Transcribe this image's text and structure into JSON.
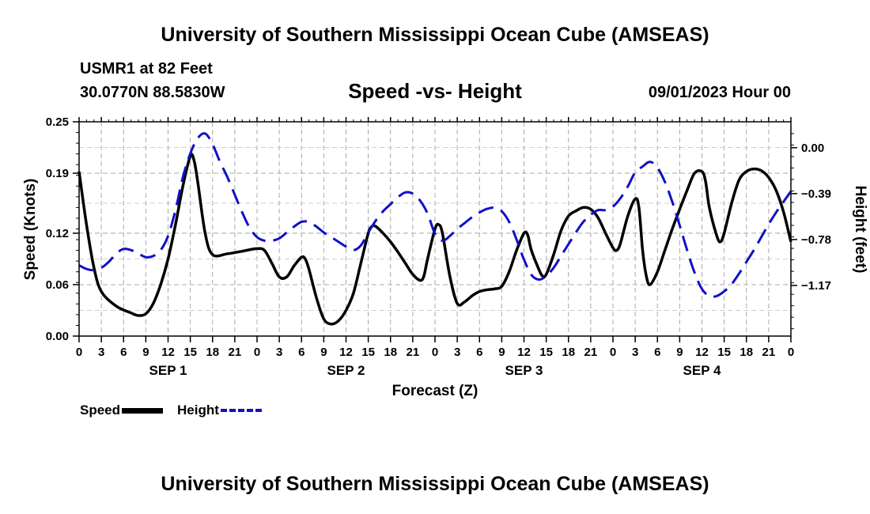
{
  "header": {
    "title": "University of Southern Mississippi Ocean Cube (AMSEAS)",
    "station": "USMR1 at 82 Feet",
    "coords": "30.0770N  88.5830W",
    "subtitle": "Speed -vs- Height",
    "datetime": "09/01/2023 Hour 00"
  },
  "footer": {
    "title": "University of Southern Mississippi Ocean Cube (AMSEAS)"
  },
  "legend": [
    {
      "label": "Speed",
      "color": "#000000",
      "style": "solid"
    },
    {
      "label": "Height",
      "color": "#1010c8",
      "style": "dashed"
    }
  ],
  "chart_data": {
    "type": "line",
    "title": "Speed -vs- Height",
    "xlabel": "Forecast (Z)",
    "ylabel": "Speed (Knots)",
    "y2label": "Height (feet)",
    "xlim": [
      0,
      96
    ],
    "ylim": [
      0,
      0.25
    ],
    "y2lim": [
      -1.6,
      0.22
    ],
    "y_ticks": [
      0.0,
      0.06,
      0.12,
      0.19,
      0.25
    ],
    "y_tick_labels": [
      "0.00",
      "0.06",
      "0.12",
      "0.19",
      "0.25"
    ],
    "y2_ticks": [
      0.0,
      -0.39,
      -0.78,
      -1.17
    ],
    "y2_tick_labels": [
      "0.00",
      "−0.39",
      "−0.78",
      "−1.17"
    ],
    "x_ticks": [
      0,
      3,
      6,
      9,
      12,
      15,
      18,
      21,
      24,
      27,
      30,
      33,
      36,
      39,
      42,
      45,
      48,
      51,
      54,
      57,
      60,
      63,
      66,
      69,
      72,
      75,
      78,
      81,
      84,
      87,
      90,
      93,
      96
    ],
    "x_tick_labels": [
      "0",
      "3",
      "6",
      "9",
      "12",
      "15",
      "18",
      "21",
      "0",
      "3",
      "6",
      "9",
      "12",
      "15",
      "18",
      "21",
      "0",
      "3",
      "6",
      "9",
      "12",
      "15",
      "18",
      "21",
      "0",
      "3",
      "6",
      "9",
      "12",
      "15",
      "18",
      "21",
      "0"
    ],
    "day_labels": [
      {
        "x": 12,
        "label": "SEP 1"
      },
      {
        "x": 36,
        "label": "SEP 2"
      },
      {
        "x": 60,
        "label": "SEP 3"
      },
      {
        "x": 84,
        "label": "SEP 4"
      }
    ],
    "grid": true,
    "series": [
      {
        "name": "Speed",
        "axis": "left",
        "color": "#000000",
        "style": "solid",
        "points": [
          [
            0,
            0.192
          ],
          [
            1,
            0.13
          ],
          [
            2,
            0.08
          ],
          [
            3,
            0.052
          ],
          [
            5,
            0.035
          ],
          [
            7,
            0.027
          ],
          [
            8,
            0.024
          ],
          [
            9,
            0.026
          ],
          [
            10,
            0.038
          ],
          [
            11,
            0.06
          ],
          [
            12,
            0.09
          ],
          [
            13,
            0.13
          ],
          [
            14,
            0.175
          ],
          [
            15,
            0.21
          ],
          [
            15.5,
            0.205
          ],
          [
            16,
            0.18
          ],
          [
            17,
            0.12
          ],
          [
            18,
            0.095
          ],
          [
            20,
            0.096
          ],
          [
            22,
            0.099
          ],
          [
            24,
            0.102
          ],
          [
            25,
            0.1
          ],
          [
            26,
            0.085
          ],
          [
            27,
            0.069
          ],
          [
            28,
            0.069
          ],
          [
            29,
            0.082
          ],
          [
            30,
            0.092
          ],
          [
            30.5,
            0.09
          ],
          [
            31,
            0.078
          ],
          [
            32,
            0.045
          ],
          [
            33,
            0.02
          ],
          [
            34,
            0.014
          ],
          [
            35,
            0.018
          ],
          [
            36,
            0.03
          ],
          [
            37,
            0.05
          ],
          [
            38,
            0.085
          ],
          [
            39,
            0.12
          ],
          [
            39.5,
            0.128
          ],
          [
            40,
            0.128
          ],
          [
            41,
            0.12
          ],
          [
            42,
            0.11
          ],
          [
            43,
            0.098
          ],
          [
            44,
            0.085
          ],
          [
            45,
            0.072
          ],
          [
            46,
            0.065
          ],
          [
            46.5,
            0.07
          ],
          [
            47,
            0.09
          ],
          [
            48,
            0.125
          ],
          [
            48.5,
            0.13
          ],
          [
            49,
            0.12
          ],
          [
            50,
            0.07
          ],
          [
            51,
            0.038
          ],
          [
            52,
            0.04
          ],
          [
            53,
            0.047
          ],
          [
            54,
            0.052
          ],
          [
            55,
            0.054
          ],
          [
            56,
            0.055
          ],
          [
            57,
            0.058
          ],
          [
            58,
            0.075
          ],
          [
            59,
            0.1
          ],
          [
            60,
            0.12
          ],
          [
            60.5,
            0.118
          ],
          [
            61,
            0.1
          ],
          [
            62,
            0.078
          ],
          [
            62.5,
            0.07
          ],
          [
            63,
            0.072
          ],
          [
            64,
            0.095
          ],
          [
            65,
            0.123
          ],
          [
            66,
            0.14
          ],
          [
            67,
            0.146
          ],
          [
            68,
            0.15
          ],
          [
            69,
            0.148
          ],
          [
            70,
            0.138
          ],
          [
            71,
            0.12
          ],
          [
            72,
            0.103
          ],
          [
            72.5,
            0.1
          ],
          [
            73,
            0.108
          ],
          [
            74,
            0.14
          ],
          [
            75,
            0.16
          ],
          [
            75.5,
            0.15
          ],
          [
            76,
            0.1
          ],
          [
            76.5,
            0.07
          ],
          [
            77,
            0.06
          ],
          [
            78,
            0.075
          ],
          [
            79,
            0.1
          ],
          [
            80,
            0.125
          ],
          [
            81,
            0.148
          ],
          [
            82,
            0.17
          ],
          [
            83,
            0.19
          ],
          [
            84,
            0.192
          ],
          [
            84.5,
            0.18
          ],
          [
            85,
            0.15
          ],
          [
            86,
            0.117
          ],
          [
            86.5,
            0.11
          ],
          [
            87,
            0.12
          ],
          [
            88,
            0.155
          ],
          [
            89,
            0.182
          ],
          [
            90,
            0.192
          ],
          [
            91,
            0.195
          ],
          [
            92,
            0.193
          ],
          [
            93,
            0.185
          ],
          [
            94,
            0.17
          ],
          [
            95,
            0.145
          ],
          [
            96,
            0.11
          ]
        ]
      },
      {
        "name": "Height",
        "axis": "right",
        "color": "#1010c8",
        "style": "dashed",
        "points": [
          [
            0,
            -1.0
          ],
          [
            1,
            -1.03
          ],
          [
            2,
            -1.04
          ],
          [
            3,
            -1.02
          ],
          [
            4,
            -0.97
          ],
          [
            5,
            -0.9
          ],
          [
            6,
            -0.86
          ],
          [
            7,
            -0.87
          ],
          [
            8,
            -0.9
          ],
          [
            9,
            -0.93
          ],
          [
            10,
            -0.92
          ],
          [
            11,
            -0.87
          ],
          [
            12,
            -0.75
          ],
          [
            13,
            -0.53
          ],
          [
            14,
            -0.25
          ],
          [
            15,
            -0.05
          ],
          [
            16,
            0.08
          ],
          [
            17,
            0.12
          ],
          [
            18,
            0.03
          ],
          [
            19,
            -0.12
          ],
          [
            20,
            -0.25
          ],
          [
            21,
            -0.4
          ],
          [
            22,
            -0.55
          ],
          [
            23,
            -0.68
          ],
          [
            24,
            -0.76
          ],
          [
            25,
            -0.79
          ],
          [
            26,
            -0.79
          ],
          [
            27,
            -0.77
          ],
          [
            28,
            -0.72
          ],
          [
            29,
            -0.67
          ],
          [
            30,
            -0.63
          ],
          [
            31,
            -0.63
          ],
          [
            32,
            -0.67
          ],
          [
            33,
            -0.72
          ],
          [
            34,
            -0.76
          ],
          [
            35,
            -0.8
          ],
          [
            36,
            -0.84
          ],
          [
            37,
            -0.87
          ],
          [
            38,
            -0.83
          ],
          [
            39,
            -0.72
          ],
          [
            40,
            -0.62
          ],
          [
            41,
            -0.54
          ],
          [
            42,
            -0.48
          ],
          [
            43,
            -0.42
          ],
          [
            44,
            -0.38
          ],
          [
            45,
            -0.39
          ],
          [
            46,
            -0.45
          ],
          [
            47,
            -0.56
          ],
          [
            48,
            -0.73
          ],
          [
            49,
            -0.79
          ],
          [
            50,
            -0.75
          ],
          [
            51,
            -0.69
          ],
          [
            52,
            -0.64
          ],
          [
            53,
            -0.59
          ],
          [
            54,
            -0.55
          ],
          [
            55,
            -0.52
          ],
          [
            56,
            -0.51
          ],
          [
            57,
            -0.54
          ],
          [
            58,
            -0.63
          ],
          [
            59,
            -0.78
          ],
          [
            60,
            -0.95
          ],
          [
            61,
            -1.08
          ],
          [
            62,
            -1.12
          ],
          [
            63,
            -1.09
          ],
          [
            64,
            -1.02
          ],
          [
            65,
            -0.92
          ],
          [
            66,
            -0.82
          ],
          [
            67,
            -0.72
          ],
          [
            68,
            -0.63
          ],
          [
            69,
            -0.57
          ],
          [
            70,
            -0.53
          ],
          [
            71,
            -0.53
          ],
          [
            72,
            -0.5
          ],
          [
            73,
            -0.43
          ],
          [
            74,
            -0.33
          ],
          [
            75,
            -0.21
          ],
          [
            76,
            -0.16
          ],
          [
            77,
            -0.12
          ],
          [
            78,
            -0.17
          ],
          [
            79,
            -0.29
          ],
          [
            80,
            -0.46
          ],
          [
            81,
            -0.66
          ],
          [
            82,
            -0.87
          ],
          [
            83,
            -1.06
          ],
          [
            84,
            -1.2
          ],
          [
            85,
            -1.26
          ],
          [
            86,
            -1.26
          ],
          [
            87,
            -1.22
          ],
          [
            88,
            -1.16
          ],
          [
            89,
            -1.07
          ],
          [
            90,
            -0.97
          ],
          [
            91,
            -0.87
          ],
          [
            92,
            -0.76
          ],
          [
            93,
            -0.65
          ],
          [
            94,
            -0.55
          ],
          [
            95,
            -0.46
          ],
          [
            96,
            -0.37
          ]
        ]
      }
    ]
  }
}
